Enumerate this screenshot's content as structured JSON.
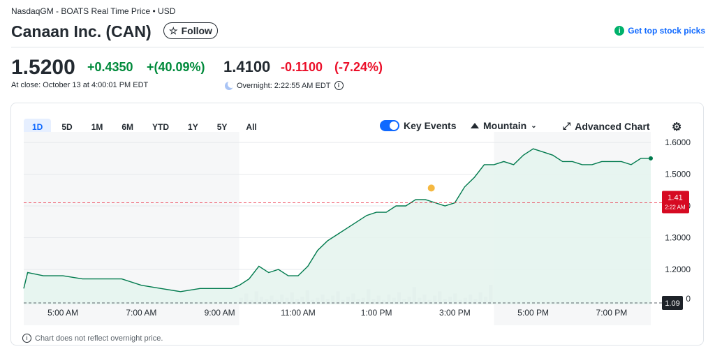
{
  "header": {
    "exchange": "NasdaqGM - BOATS Real Time Price • USD",
    "title": "Canaan Inc. (CAN)",
    "follow_label": "Follow",
    "top_picks_label": "Get top stock picks"
  },
  "quote": {
    "price": "1.5200",
    "change": "+0.4350",
    "change_pct": "+(40.09%)",
    "close_label": "At close: October 13 at 4:00:01 PM EDT",
    "overnight_price": "1.4100",
    "overnight_change": "-0.1100",
    "overnight_change_pct": "(-7.24%)",
    "overnight_label": "Overnight: 2:22:55 AM EDT"
  },
  "chart_controls": {
    "ranges": [
      "1D",
      "5D",
      "1M",
      "6M",
      "YTD",
      "1Y",
      "5Y",
      "All"
    ],
    "active_range": "1D",
    "key_events_label": "Key Events",
    "chart_type_label": "Mountain",
    "advanced_chart_label": "Advanced Chart",
    "footnote": "Chart does not reflect overnight price."
  },
  "colors": {
    "line": "#007a4d",
    "fill": "#e6f4ee",
    "prev_close": "#5b636a",
    "overnight": "#eb0f29",
    "accent": "#0f69ff",
    "event": "#f5b841"
  },
  "chart_data": {
    "type": "area",
    "x_ticks": [
      "5:00 AM",
      "7:00 AM",
      "9:00 AM",
      "11:00 AM",
      "1:00 PM",
      "3:00 PM",
      "5:00 PM",
      "7:00 PM"
    ],
    "y_ticks": [
      "1.6000",
      "1.5000",
      "1.4000",
      "1.3000",
      "1.2000",
      "1.1000"
    ],
    "ylim": [
      1.09,
      1.62
    ],
    "x_range_hours": [
      4,
      20
    ],
    "regular_session_hours": [
      9.5,
      16
    ],
    "previous_close": 1.09,
    "previous_close_label": "1.09",
    "overnight_value": 1.41,
    "overnight_value_label": "1.41",
    "overnight_time_label": "2:22 AM",
    "event_marker": {
      "hour": 14.4,
      "value": 1.43
    },
    "series": [
      {
        "x": [
          4,
          4.1,
          4.5,
          5,
          5.5,
          6,
          6.5,
          7,
          7.5,
          8,
          8.5,
          9,
          9.3,
          9.5,
          9.75,
          10,
          10.25,
          10.5,
          10.75,
          11,
          11.25,
          11.5,
          11.75,
          12,
          12.25,
          12.5,
          12.75,
          13,
          13.25,
          13.5,
          13.75,
          14,
          14.25,
          14.5,
          14.75,
          15,
          15.25,
          15.5,
          15.75,
          16,
          16.25,
          16.5,
          16.75,
          17,
          17.25,
          17.5,
          17.75,
          18,
          18.25,
          18.5,
          18.75,
          19,
          19.25,
          19.5,
          19.75,
          20
        ],
        "values": [
          1.14,
          1.19,
          1.18,
          1.18,
          1.17,
          1.17,
          1.17,
          1.15,
          1.14,
          1.13,
          1.14,
          1.14,
          1.14,
          1.15,
          1.17,
          1.21,
          1.19,
          1.2,
          1.18,
          1.18,
          1.21,
          1.26,
          1.29,
          1.31,
          1.33,
          1.35,
          1.37,
          1.38,
          1.38,
          1.4,
          1.4,
          1.42,
          1.42,
          1.41,
          1.4,
          1.41,
          1.46,
          1.49,
          1.53,
          1.53,
          1.54,
          1.53,
          1.56,
          1.58,
          1.57,
          1.56,
          1.54,
          1.54,
          1.53,
          1.53,
          1.54,
          1.54,
          1.54,
          1.53,
          1.55,
          1.55
        ]
      }
    ],
    "volume": [
      6,
      10,
      4,
      12,
      7,
      5,
      8,
      4,
      9,
      6,
      11,
      5,
      7,
      13,
      4,
      6,
      9,
      5,
      8,
      12,
      4,
      7,
      10,
      5,
      6,
      14,
      5,
      8,
      4,
      9,
      6,
      11,
      5,
      7,
      16,
      6,
      9,
      4,
      8,
      12,
      5,
      7,
      10,
      4,
      6,
      9,
      5,
      11,
      7,
      18
    ]
  }
}
